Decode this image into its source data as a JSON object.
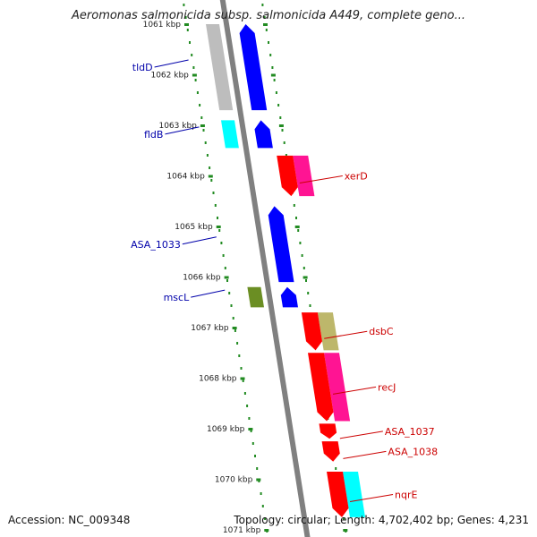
{
  "title": "Aeromonas salmonicida subsp. salmonicida A449, complete geno...",
  "accession": "Accession: NC_009348",
  "summary": "Topology: circular; Length: 4,702,402 bp; Genes: 4,231",
  "ticks": [
    {
      "label": "1061 kbp",
      "pos": 1061
    },
    {
      "label": "1062 kbp",
      "pos": 1062
    },
    {
      "label": "1063 kbp",
      "pos": 1063
    },
    {
      "label": "1064 kbp",
      "pos": 1064
    },
    {
      "label": "1065 kbp",
      "pos": 1065
    },
    {
      "label": "1066 kbp",
      "pos": 1066
    },
    {
      "label": "1067 kbp",
      "pos": 1067
    },
    {
      "label": "1068 kbp",
      "pos": 1068
    },
    {
      "label": "1069 kbp",
      "pos": 1069
    },
    {
      "label": "1070 kbp",
      "pos": 1070
    },
    {
      "label": "1071 kbp",
      "pos": 1071
    }
  ],
  "genes": [
    {
      "name": "tldD",
      "strand": "reverse",
      "start": 1061.0,
      "end": 1062.7,
      "color": "#0000ff"
    },
    {
      "name": "fldB",
      "strand": "reverse",
      "start": 1062.9,
      "end": 1063.45,
      "color": "#0000ff"
    },
    {
      "name": "ASA_1033",
      "strand": "reverse",
      "start": 1064.6,
      "end": 1066.1,
      "color": "#0000ff"
    },
    {
      "name": "mscL",
      "strand": "reverse",
      "start": 1066.2,
      "end": 1066.6,
      "color": "#0000ff"
    },
    {
      "name": "xerD",
      "strand": "forward",
      "start": 1063.6,
      "end": 1064.4,
      "color": "#ff0000"
    },
    {
      "name": "dsbC",
      "strand": "forward",
      "start": 1066.7,
      "end": 1067.45,
      "color": "#ff0000"
    },
    {
      "name": "recJ",
      "strand": "forward",
      "start": 1067.5,
      "end": 1068.85,
      "color": "#ff0000"
    },
    {
      "name": "ASA_1037",
      "strand": "forward",
      "start": 1068.9,
      "end": 1069.2,
      "color": "#ff0000"
    },
    {
      "name": "ASA_1038",
      "strand": "forward",
      "start": 1069.25,
      "end": 1069.65,
      "color": "#ff0000"
    },
    {
      "name": "nqrE",
      "strand": "forward",
      "start": 1069.85,
      "end": 1070.75,
      "color": "#ff0000"
    }
  ],
  "extra_features": [
    {
      "ring": "inner",
      "start": 1061.0,
      "end": 1062.7,
      "color": "#bdbdbd"
    },
    {
      "ring": "inner",
      "start": 1062.9,
      "end": 1063.45,
      "color": "#00ffff"
    },
    {
      "ring": "inner",
      "start": 1066.2,
      "end": 1066.6,
      "color": "#6b8e23"
    },
    {
      "ring": "outer",
      "start": 1063.6,
      "end": 1064.4,
      "color": "#ff1493"
    },
    {
      "ring": "outer",
      "start": 1066.7,
      "end": 1067.45,
      "color": "#bdb76b"
    },
    {
      "ring": "outer",
      "start": 1067.5,
      "end": 1068.85,
      "color": "#ff1493"
    },
    {
      "ring": "outer",
      "start": 1069.85,
      "end": 1070.75,
      "color": "#00ffff"
    }
  ],
  "colors": {
    "reverse_label": "#0000aa",
    "forward_label": "#cc0000",
    "tick": "#228b22",
    "backbone": "#808080",
    "tick_label": "#222222"
  }
}
